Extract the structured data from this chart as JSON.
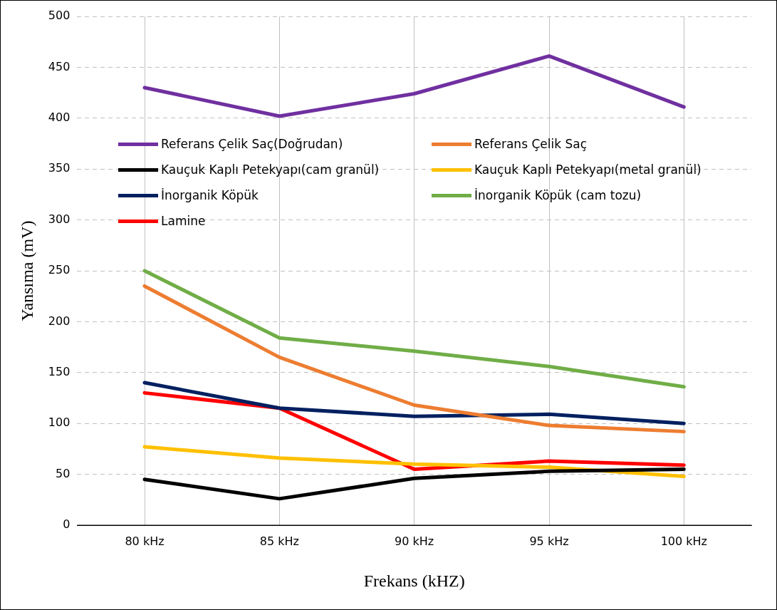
{
  "chart_data": {
    "type": "line",
    "xlabel": "Frekans (kHZ)",
    "ylabel": "Yansıma (mV)",
    "categories": [
      "80 kHz",
      "85 kHz",
      "90 kHz",
      "95 kHz",
      "100 kHz"
    ],
    "series": [
      {
        "name": "Referans Çelik Saç(Doğrudan)",
        "color": "#7030a0",
        "values": [
          430,
          402,
          424,
          461,
          411
        ]
      },
      {
        "name": "Referans Çelik Saç",
        "color": "#ed7d31",
        "values": [
          235,
          165,
          118,
          98,
          92
        ]
      },
      {
        "name": "Kauçuk Kaplı Petekyapı(cam granül)",
        "color": "#000000",
        "values": [
          45,
          26,
          46,
          53,
          55
        ]
      },
      {
        "name": "Kauçuk Kaplı Petekyapı(metal granül)",
        "color": "#ffc000",
        "values": [
          77,
          66,
          60,
          57,
          48
        ]
      },
      {
        "name": "İnorganik Köpük",
        "color": "#002060",
        "values": [
          140,
          115,
          107,
          109,
          100
        ]
      },
      {
        "name": "İnorganik Köpük (cam tozu)",
        "color": "#70ad47",
        "values": [
          250,
          184,
          171,
          156,
          136
        ]
      },
      {
        "name": "Lamine",
        "color": "#ff0000",
        "values": [
          130,
          115,
          55,
          63,
          59
        ]
      }
    ],
    "ylim": [
      0,
      500
    ],
    "yticks": [
      0,
      50,
      100,
      150,
      200,
      250,
      300,
      350,
      400,
      450,
      500
    ],
    "grid": true,
    "legend": "top left",
    "marker": "none",
    "line_style": "solid"
  }
}
